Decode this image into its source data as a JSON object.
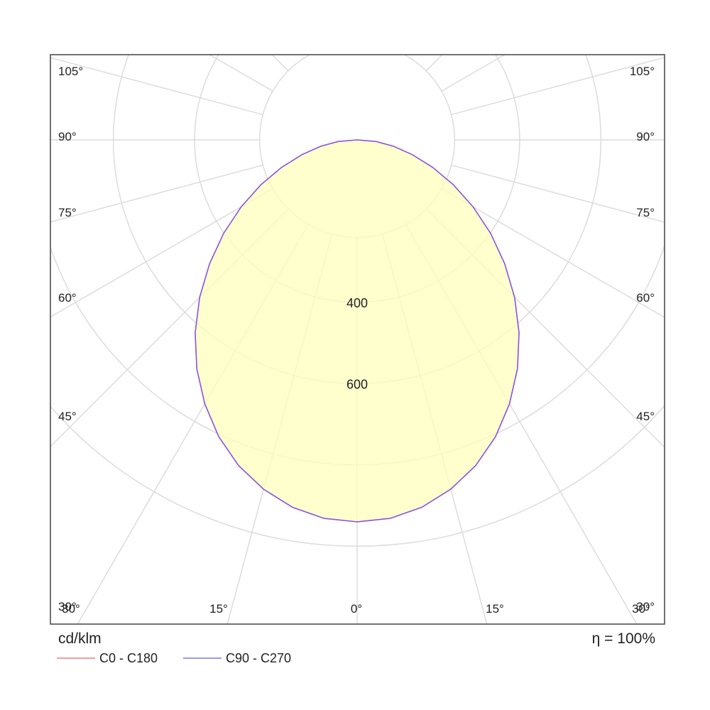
{
  "chart_data": {
    "type": "polar",
    "unit_label": "cd/klm",
    "efficiency_label": "η = 100%",
    "radial_tick_labels": [
      "400",
      "600"
    ],
    "angle_labels_left": [
      "105°",
      "90°",
      "75°",
      "60°",
      "45°",
      "30°"
    ],
    "angle_labels_right": [
      "105°",
      "90°",
      "75°",
      "60°",
      "45°",
      "30°"
    ],
    "angle_labels_bottom": [
      "30°",
      "15°",
      "0°",
      "15°",
      "30°"
    ],
    "series": [
      {
        "name": "C0 - C180",
        "color": "#f0a0a0",
        "angles": [
          0,
          5,
          10,
          15,
          20,
          25,
          30,
          35,
          40,
          45,
          50,
          55,
          60,
          65,
          70,
          75,
          80,
          85,
          90
        ],
        "values": [
          940,
          935,
          918,
          890,
          853,
          806,
          750,
          688,
          620,
          548,
          474,
          401,
          329,
          261,
          198,
          141,
          91,
          47,
          0
        ]
      },
      {
        "name": "C90 - C270",
        "color": "#9a9af0",
        "angles": [
          0,
          5,
          10,
          15,
          20,
          25,
          30,
          35,
          40,
          45,
          50,
          55,
          60,
          65,
          70,
          75,
          80,
          85,
          90
        ],
        "values": [
          940,
          935,
          918,
          890,
          853,
          806,
          750,
          688,
          620,
          548,
          474,
          401,
          329,
          261,
          198,
          141,
          91,
          47,
          0
        ]
      }
    ]
  }
}
